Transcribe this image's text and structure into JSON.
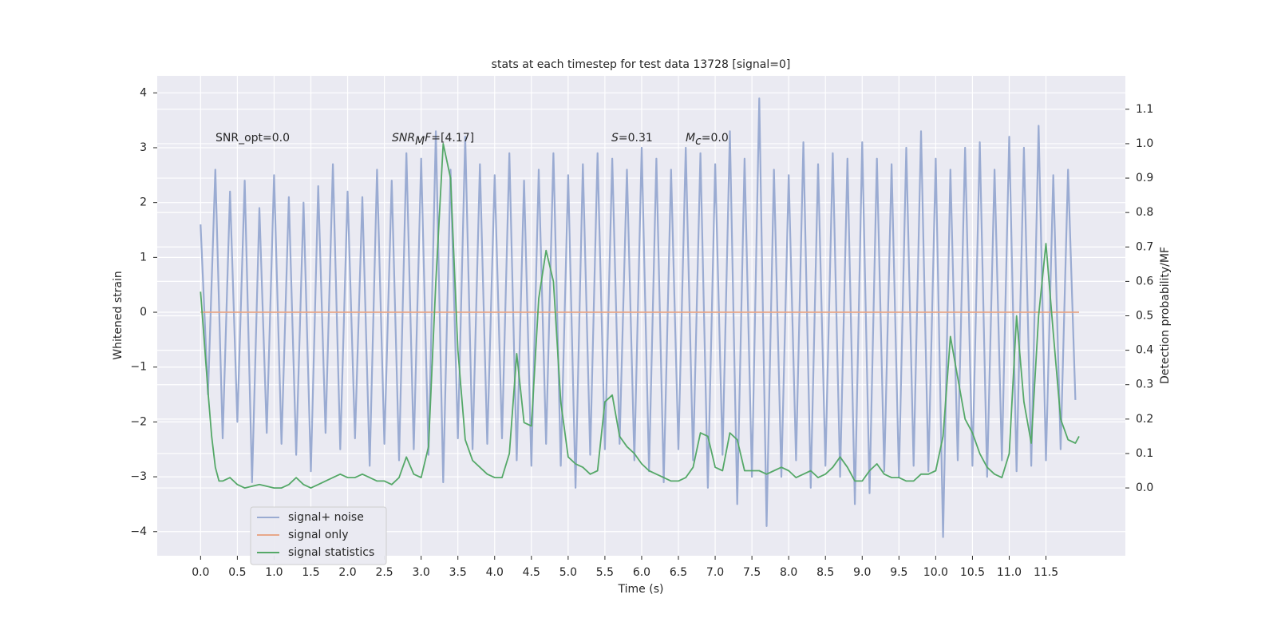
{
  "chart_data": {
    "type": "line",
    "title": "stats at each timestep for test data 13728 [signal=0]",
    "x_label": "Time (s)",
    "y_label": "Whitened strain",
    "y2_label": "Detection probability/MF",
    "xlim": [
      -0.59,
      12.58
    ],
    "ylim": [
      -4.44,
      4.31
    ],
    "y2lim": [
      -0.197,
      1.197
    ],
    "grid": true,
    "legend": "lower left",
    "xticks": [
      {
        "value": 0,
        "label": "0.0"
      },
      0.5,
      {
        "value": 1,
        "label": "1.0"
      },
      1.5,
      {
        "value": 2,
        "label": "2.0"
      },
      2.5,
      {
        "value": 3,
        "label": "3.0"
      },
      3.5,
      {
        "value": 4,
        "label": "4.0"
      },
      4.5,
      {
        "value": 5,
        "label": "5.0"
      },
      5.5,
      {
        "value": 6,
        "label": "6.0"
      },
      6.5,
      {
        "value": 7,
        "label": "7.0"
      },
      7.5,
      {
        "value": 8,
        "label": "8.0"
      },
      8.5,
      {
        "value": 9,
        "label": "9.0"
      },
      9.5,
      {
        "value": 10,
        "label": "10.0"
      },
      10.5,
      {
        "value": 11,
        "label": "11.0"
      },
      11.5
    ],
    "yticks": [
      {
        "value": -4,
        "label": "−4"
      },
      {
        "value": -3,
        "label": "−3"
      },
      {
        "value": -2,
        "label": "−2"
      },
      {
        "value": -1,
        "label": "−1"
      },
      0,
      1,
      2,
      3,
      4
    ],
    "y2ticks": [
      {
        "value": 0,
        "label": "0.0"
      },
      0.1,
      0.2,
      0.3,
      0.4,
      0.5,
      0.6,
      0.7,
      0.8,
      0.9,
      {
        "value": 1,
        "label": "1.0"
      },
      1.1
    ],
    "annotations": [
      [
        {
          "text": "SNR_opt=0.0",
          "italic": false,
          "sub": false
        }
      ],
      [
        {
          "text": "SNR",
          "italic": true,
          "sub": false
        },
        {
          "text": "M",
          "italic": true,
          "sub": true
        },
        {
          "text": "F",
          "italic": true,
          "sub": false
        },
        {
          "text": "=[4.17]",
          "italic": false,
          "sub": false
        }
      ],
      [
        {
          "text": "S",
          "italic": true,
          "sub": false
        },
        {
          "text": "=0.31",
          "italic": false,
          "sub": false
        }
      ],
      [
        {
          "text": "M",
          "italic": true,
          "sub": false
        },
        {
          "text": "c",
          "italic": true,
          "sub": true
        },
        {
          "text": "=0.0",
          "italic": false,
          "sub": false
        }
      ]
    ],
    "series": [
      {
        "name": "signal+ noise",
        "color": "#9aabd2",
        "axis": "y",
        "x": [
          0,
          0.1,
          0.2,
          0.3,
          0.4,
          0.5,
          0.6,
          0.7,
          0.8,
          0.9,
          1,
          1.1,
          1.2,
          1.3,
          1.4,
          1.5,
          1.6,
          1.7,
          1.8,
          1.9,
          2,
          2.1,
          2.2,
          2.3,
          2.4,
          2.5,
          2.6,
          2.7,
          2.8,
          2.9,
          3,
          3.1,
          3.2,
          3.3,
          3.4,
          3.5,
          3.6,
          3.7,
          3.8,
          3.9,
          4,
          4.1,
          4.2,
          4.3,
          4.4,
          4.5,
          4.6,
          4.7,
          4.8,
          4.9,
          5,
          5.1,
          5.2,
          5.3,
          5.4,
          5.5,
          5.6,
          5.7,
          5.8,
          5.9,
          6,
          6.1,
          6.2,
          6.3,
          6.4,
          6.5,
          6.6,
          6.7,
          6.8,
          6.9,
          7,
          7.1,
          7.2,
          7.3,
          7.4,
          7.5,
          7.6,
          7.7,
          7.8,
          7.9,
          8,
          8.1,
          8.2,
          8.3,
          8.4,
          8.5,
          8.6,
          8.7,
          8.8,
          8.9,
          9,
          9.1,
          9.2,
          9.3,
          9.4,
          9.5,
          9.6,
          9.7,
          9.8,
          9.9,
          10,
          10.1,
          10.2,
          10.3,
          10.4,
          10.5,
          10.6,
          10.7,
          10.8,
          10.9,
          11,
          11.1,
          11.2,
          11.3,
          11.4,
          11.5,
          11.6,
          11.7,
          11.8,
          11.9
        ],
        "values": [
          1.6,
          -1.5,
          2.6,
          -2.3,
          2.2,
          -2.0,
          2.4,
          -3.1,
          1.9,
          -2.2,
          2.5,
          -2.4,
          2.1,
          -2.6,
          2.0,
          -2.9,
          2.3,
          -2.2,
          2.7,
          -2.5,
          2.2,
          -2.3,
          2.1,
          -2.8,
          2.6,
          -2.4,
          2.4,
          -2.7,
          2.9,
          -2.5,
          2.8,
          -2.6,
          3.3,
          -3.1,
          2.6,
          -2.3,
          3.2,
          -2.5,
          2.7,
          -2.4,
          2.5,
          -2.3,
          2.9,
          -2.7,
          2.4,
          -2.8,
          2.6,
          -2.4,
          2.9,
          -2.8,
          2.5,
          -3.2,
          2.7,
          -2.6,
          2.9,
          -2.5,
          2.8,
          -2.4,
          2.6,
          -2.7,
          3.0,
          -2.9,
          2.8,
          -3.1,
          2.6,
          -2.5,
          3.0,
          -2.7,
          2.9,
          -3.2,
          2.7,
          -2.6,
          3.3,
          -3.5,
          2.8,
          -3.0,
          3.9,
          -3.9,
          2.6,
          -3.0,
          2.5,
          -2.7,
          3.1,
          -3.2,
          2.7,
          -2.8,
          2.9,
          -3.0,
          2.8,
          -3.5,
          3.1,
          -3.3,
          2.8,
          -2.9,
          2.7,
          -3.0,
          3.0,
          -2.8,
          3.3,
          -2.9,
          2.8,
          -4.1,
          2.6,
          -2.7,
          3.0,
          -2.8,
          3.1,
          -3.0,
          2.6,
          -2.7,
          3.2,
          -2.9,
          3.0,
          -2.8,
          3.4,
          -2.7,
          2.5,
          -2.5,
          2.6,
          -1.6
        ]
      },
      {
        "name": "signal only",
        "color": "#e8a88a",
        "axis": "y",
        "x": [
          0,
          11.95
        ],
        "values": [
          0,
          0
        ]
      },
      {
        "name": "signal statistics",
        "color": "#55a868",
        "axis": "y2",
        "x": [
          0,
          0.1,
          0.15,
          0.2,
          0.25,
          0.3,
          0.4,
          0.5,
          0.6,
          0.8,
          1.0,
          1.1,
          1.2,
          1.3,
          1.4,
          1.5,
          1.6,
          1.7,
          1.8,
          1.9,
          2.0,
          2.1,
          2.2,
          2.3,
          2.4,
          2.5,
          2.6,
          2.7,
          2.8,
          2.9,
          3.0,
          3.1,
          3.2,
          3.3,
          3.4,
          3.5,
          3.6,
          3.7,
          3.8,
          3.9,
          4.0,
          4.1,
          4.2,
          4.3,
          4.4,
          4.5,
          4.6,
          4.7,
          4.8,
          4.9,
          5.0,
          5.1,
          5.2,
          5.3,
          5.4,
          5.5,
          5.6,
          5.7,
          5.8,
          5.9,
          6.0,
          6.1,
          6.2,
          6.3,
          6.4,
          6.5,
          6.6,
          6.7,
          6.8,
          6.9,
          7.0,
          7.1,
          7.2,
          7.3,
          7.4,
          7.5,
          7.6,
          7.7,
          7.8,
          7.9,
          8.0,
          8.1,
          8.2,
          8.3,
          8.4,
          8.5,
          8.6,
          8.7,
          8.8,
          8.9,
          9.0,
          9.1,
          9.2,
          9.3,
          9.4,
          9.5,
          9.6,
          9.7,
          9.8,
          9.9,
          10.0,
          10.1,
          10.2,
          10.3,
          10.4,
          10.5,
          10.6,
          10.7,
          10.8,
          10.9,
          11.0,
          11.1,
          11.2,
          11.3,
          11.4,
          11.5,
          11.6,
          11.7,
          11.8,
          11.9,
          11.95
        ],
        "values": [
          0.57,
          0.28,
          0.15,
          0.06,
          0.02,
          0.02,
          0.03,
          0.01,
          0.0,
          0.01,
          0.0,
          0.0,
          0.01,
          0.03,
          0.01,
          0.0,
          0.01,
          0.02,
          0.03,
          0.04,
          0.03,
          0.03,
          0.04,
          0.03,
          0.02,
          0.02,
          0.01,
          0.03,
          0.09,
          0.04,
          0.03,
          0.12,
          0.6,
          1.0,
          0.9,
          0.4,
          0.14,
          0.08,
          0.06,
          0.04,
          0.03,
          0.03,
          0.1,
          0.39,
          0.19,
          0.18,
          0.55,
          0.69,
          0.6,
          0.25,
          0.09,
          0.07,
          0.06,
          0.04,
          0.05,
          0.25,
          0.27,
          0.15,
          0.12,
          0.1,
          0.07,
          0.05,
          0.04,
          0.03,
          0.02,
          0.02,
          0.03,
          0.06,
          0.16,
          0.15,
          0.06,
          0.05,
          0.16,
          0.14,
          0.05,
          0.05,
          0.05,
          0.04,
          0.05,
          0.06,
          0.05,
          0.03,
          0.04,
          0.05,
          0.03,
          0.04,
          0.06,
          0.09,
          0.06,
          0.02,
          0.02,
          0.05,
          0.07,
          0.04,
          0.03,
          0.03,
          0.02,
          0.02,
          0.04,
          0.04,
          0.05,
          0.15,
          0.44,
          0.32,
          0.2,
          0.16,
          0.1,
          0.06,
          0.04,
          0.03,
          0.1,
          0.5,
          0.25,
          0.13,
          0.5,
          0.71,
          0.45,
          0.2,
          0.14,
          0.13,
          0.15
        ]
      }
    ]
  }
}
